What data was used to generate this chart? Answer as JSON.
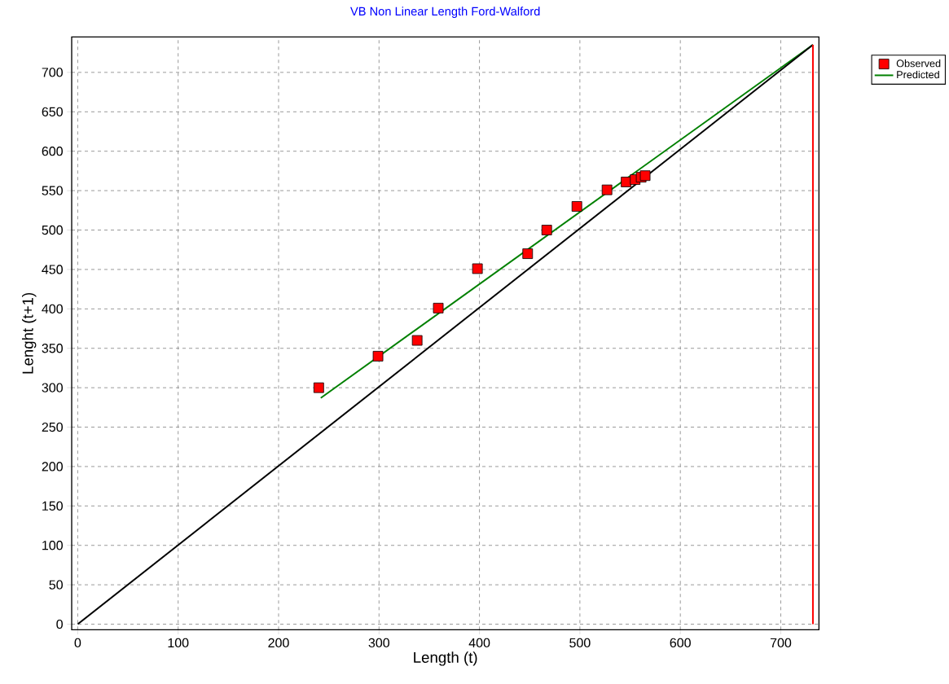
{
  "chart_data": {
    "type": "scatter",
    "title": "VB Non Linear Length Ford-Walford",
    "xlabel": "Length (t)",
    "ylabel": "Lenght (t+1)",
    "xlim": [
      -6,
      738
    ],
    "ylim": [
      -7,
      745
    ],
    "xticks": [
      0,
      100,
      200,
      300,
      400,
      500,
      600,
      700
    ],
    "yticks": [
      0,
      50,
      100,
      150,
      200,
      250,
      300,
      350,
      400,
      450,
      500,
      550,
      600,
      650,
      700
    ],
    "grid": true,
    "legend": "top right",
    "series": [
      {
        "name": "Observed",
        "marker": "square",
        "color": "#ff0000",
        "x": [
          240,
          299,
          338,
          359,
          398,
          448,
          467,
          497,
          527,
          546,
          555,
          561,
          565
        ],
        "values": [
          300,
          340,
          360,
          401,
          451,
          470,
          500,
          530,
          551,
          561,
          564,
          567,
          569
        ]
      },
      {
        "name": "Predicted",
        "type": "line",
        "marker": "none",
        "color": "#008000",
        "x": [
          242,
          732
        ],
        "values": [
          287,
          735
        ]
      },
      {
        "type": "line",
        "marker": "none",
        "color": "#000000",
        "x": [
          0,
          732
        ],
        "values": [
          0,
          735
        ]
      },
      {
        "type": "line",
        "marker": "none",
        "color": "#ff0000",
        "x": [
          732,
          732
        ],
        "values": [
          0,
          735
        ]
      }
    ]
  }
}
